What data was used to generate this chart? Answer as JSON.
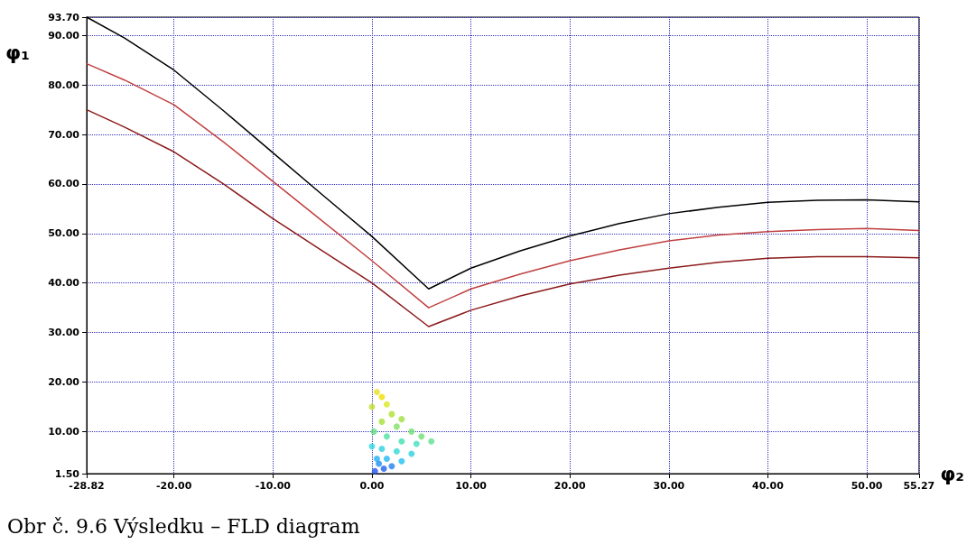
{
  "chart_data": {
    "type": "line",
    "xlabel": "φ₂",
    "ylabel": "φ₁",
    "annotations": [
      "Obr č. 9.6 Výsledku – FLD diagram"
    ],
    "xlim": [
      -28.82,
      55.27
    ],
    "ylim": [
      1.5,
      93.7
    ],
    "xticks": [
      {
        "value": -28.82,
        "label": "-28.82"
      },
      {
        "value": -20,
        "label": "-20.00"
      },
      {
        "value": -10,
        "label": "-10.00"
      },
      {
        "value": 0,
        "label": "0.00"
      },
      {
        "value": 10,
        "label": "10.00"
      },
      {
        "value": 20,
        "label": "20.00"
      },
      {
        "value": 30,
        "label": "30.00"
      },
      {
        "value": 40,
        "label": "40.00"
      },
      {
        "value": 50,
        "label": "50.00"
      },
      {
        "value": 55.27,
        "label": "55.27"
      }
    ],
    "yticks": [
      {
        "value": 1.5,
        "label": "1.50"
      },
      {
        "value": 10,
        "label": "10.00"
      },
      {
        "value": 20,
        "label": "20.00"
      },
      {
        "value": 30,
        "label": "30.00"
      },
      {
        "value": 40,
        "label": "40.00"
      },
      {
        "value": 50,
        "label": "50.00"
      },
      {
        "value": 60,
        "label": "60.00"
      },
      {
        "value": 70,
        "label": "70.00"
      },
      {
        "value": 80,
        "label": "80.00"
      },
      {
        "value": 90,
        "label": "90.00"
      },
      {
        "value": 93.7,
        "label": "93.70"
      }
    ],
    "grid": true,
    "marker": "none",
    "line_style": "solid",
    "series": [
      {
        "color": "#000000",
        "x": [
          -28.82,
          -25,
          -20,
          -15,
          -10,
          -5,
          0,
          5.73,
          10,
          15,
          20,
          25,
          30,
          35,
          40,
          45,
          50,
          55.27
        ],
        "values": [
          93.7,
          89.5,
          83,
          74.8,
          66.3,
          57.8,
          49.4,
          38.8,
          43,
          46.5,
          49.5,
          52,
          54,
          55.3,
          56.3,
          56.7,
          56.8,
          56.4
        ]
      },
      {
        "color": "#c04040",
        "x": [
          -28.82,
          -25,
          -20,
          -15,
          -10,
          -5,
          0,
          5.73,
          10,
          15,
          20,
          25,
          30,
          35,
          40,
          45,
          50,
          55.27
        ],
        "values": [
          84.3,
          81,
          76,
          68.5,
          60.5,
          52.5,
          44.5,
          35,
          38.8,
          41.8,
          44.5,
          46.7,
          48.5,
          49.7,
          50.4,
          50.8,
          51,
          50.6
        ]
      },
      {
        "color": "#8b1a1a",
        "x": [
          -28.82,
          -25,
          -20,
          -15,
          -10,
          -5,
          0,
          5.73,
          10,
          15,
          20,
          25,
          30,
          35,
          40,
          45,
          50,
          55.27
        ],
        "values": [
          75,
          71.5,
          66.5,
          60,
          53,
          46.5,
          40,
          31.2,
          34.5,
          37.4,
          39.8,
          41.6,
          43,
          44.2,
          45,
          45.3,
          45.3,
          45.1
        ]
      },
      {
        "type": "scatter",
        "marker": "circle",
        "x": [
          0.5,
          1,
          1.5,
          0,
          2,
          3,
          1,
          2.5,
          4,
          5,
          0.2,
          1.5,
          3,
          4.5,
          6,
          0,
          1,
          2.5,
          4,
          0.5,
          1.5,
          3,
          2,
          1.2,
          0.3,
          0.7
        ],
        "values": [
          18,
          17,
          15.5,
          15,
          13.5,
          12.5,
          12,
          11,
          10,
          9,
          10,
          9,
          8,
          7.5,
          8,
          7,
          6.5,
          6,
          5.5,
          4.5,
          4.5,
          4,
          3,
          2.5,
          2,
          3.5
        ],
        "colors": [
          "#e8e020",
          "#f0e000",
          "#d8e820",
          "#c0e030",
          "#b0e030",
          "#a0e040",
          "#a8e038",
          "#80e060",
          "#70e070",
          "#70e070",
          "#60e080",
          "#50e0a0",
          "#40e0b0",
          "#40e0c0",
          "#60e090",
          "#30d8e0",
          "#30d0e0",
          "#30d8d8",
          "#30d0e0",
          "#20b0f0",
          "#20b8f0",
          "#20c0f0",
          "#2080f0",
          "#2060f0",
          "#2050e8",
          "#2090f0"
        ]
      }
    ]
  }
}
